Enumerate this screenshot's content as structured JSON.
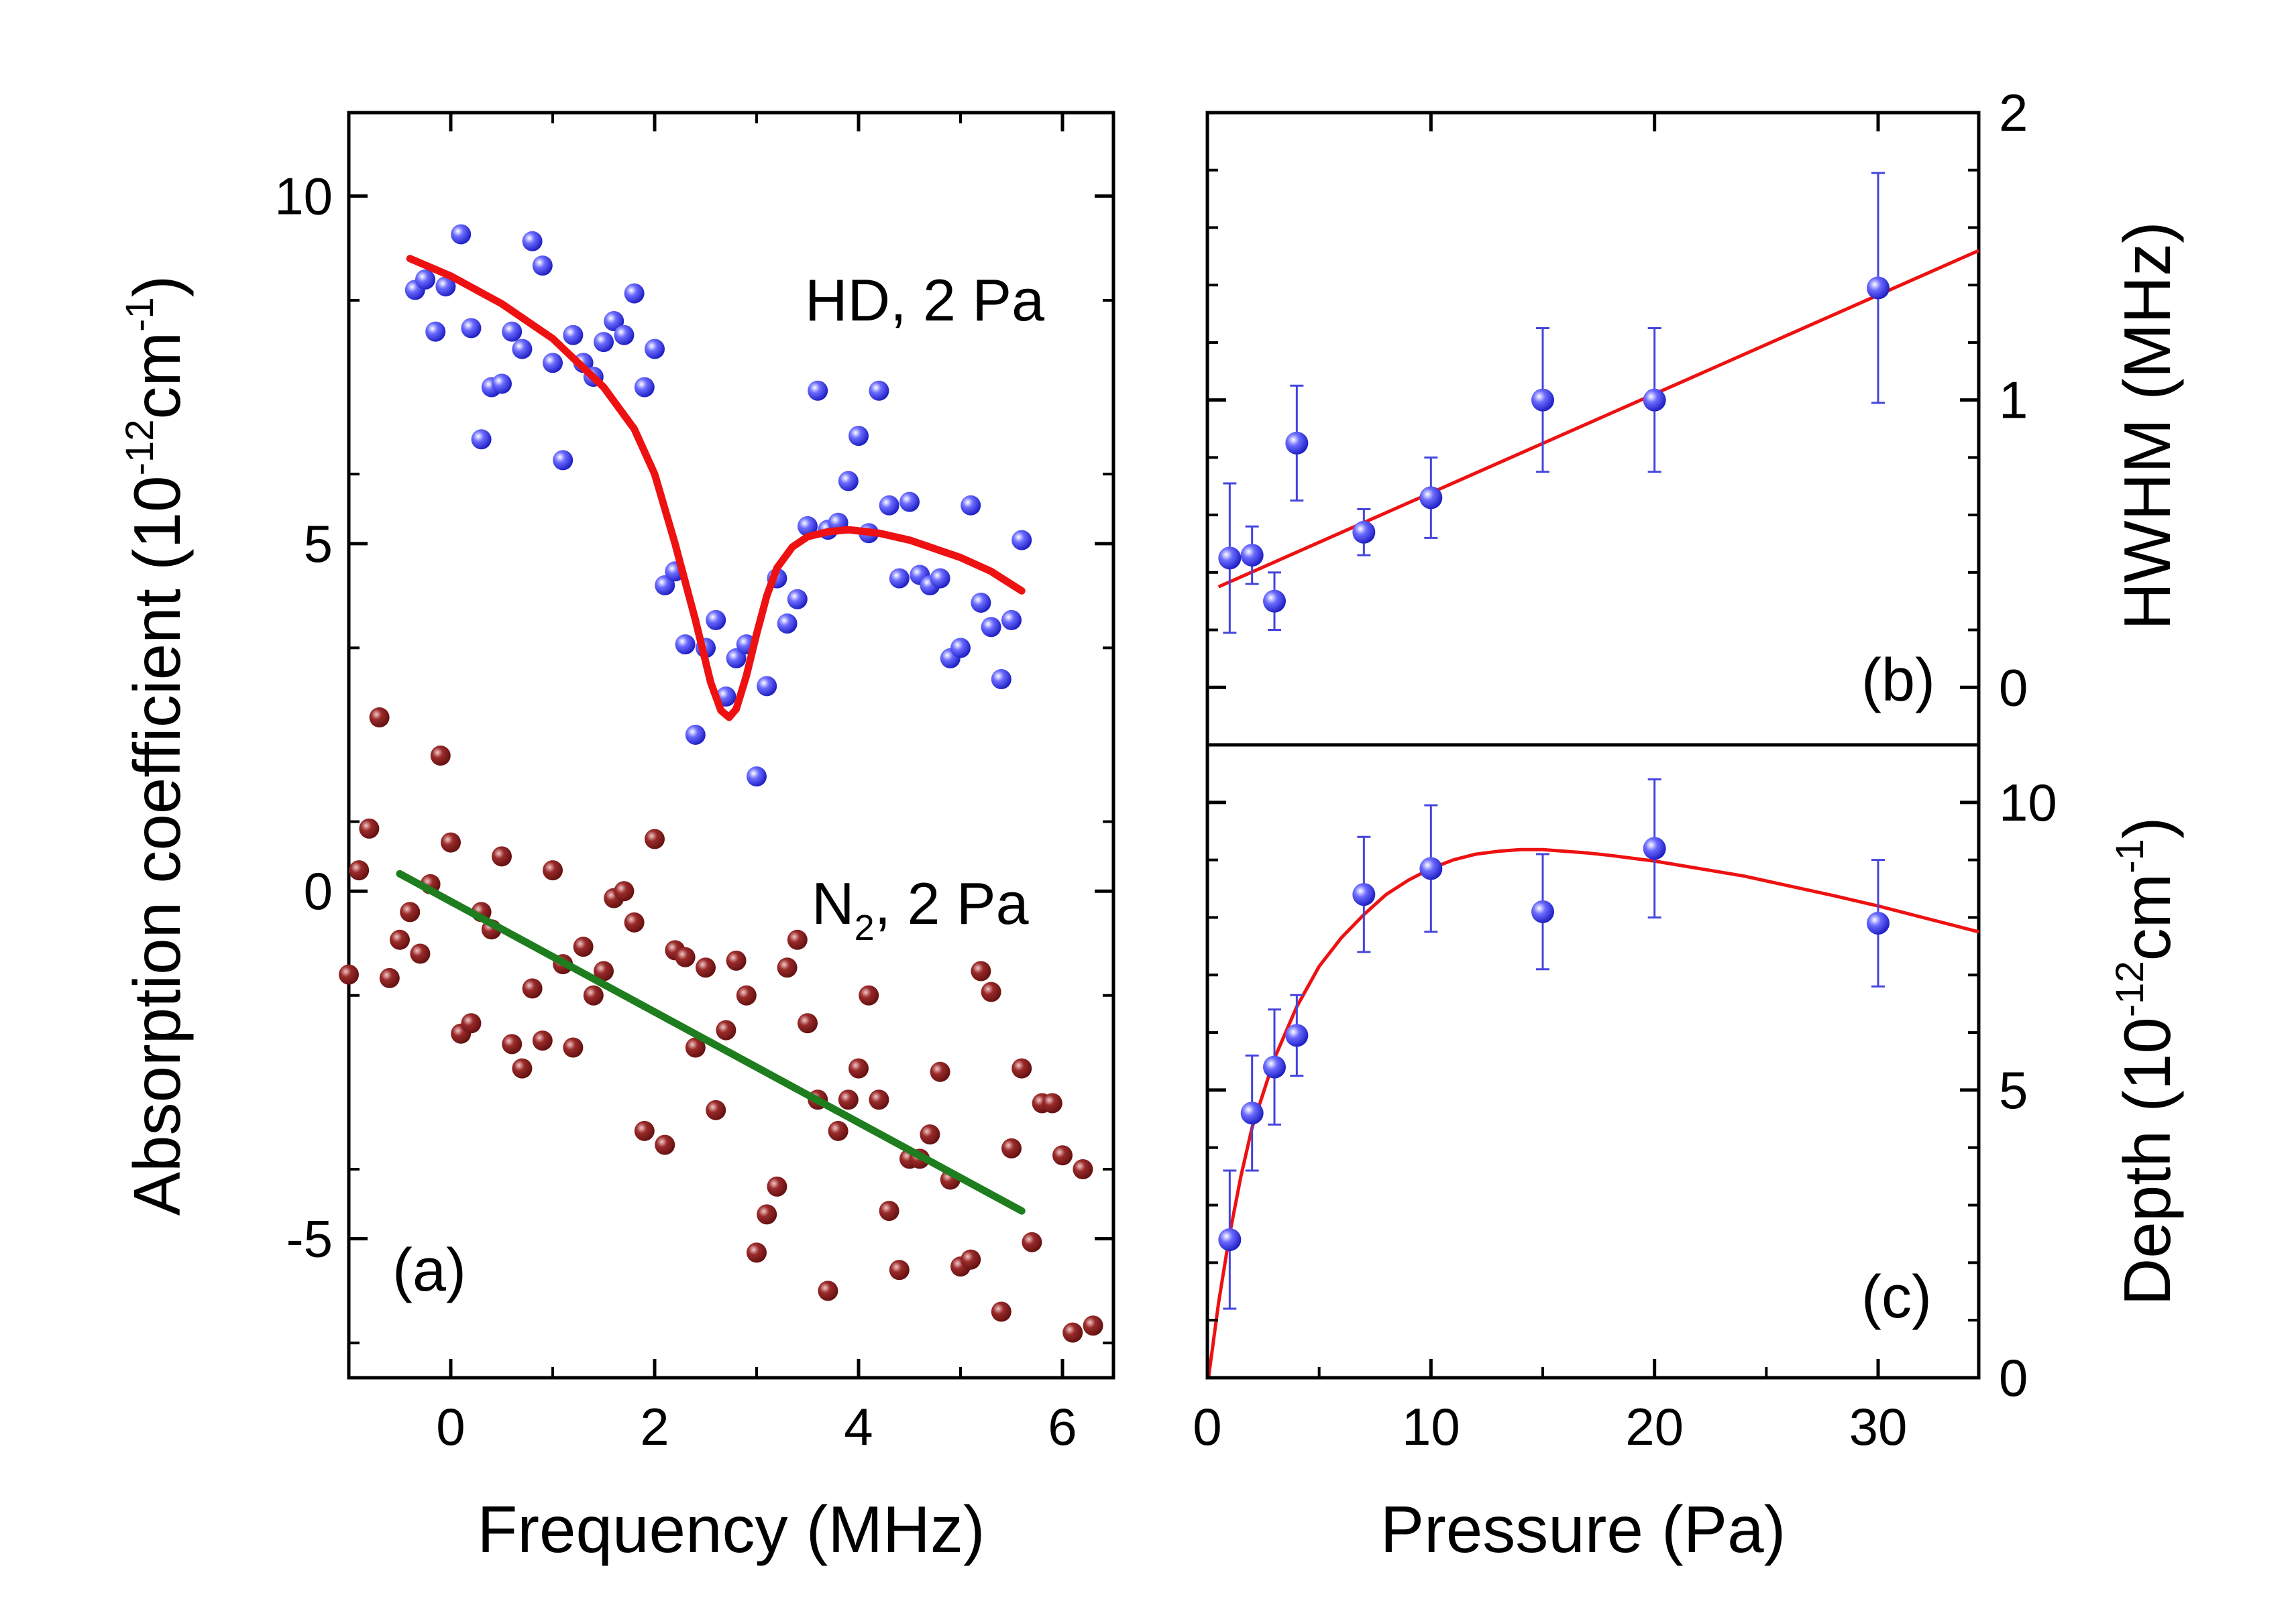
{
  "colors": {
    "hd_points": "#2424e6",
    "hd_fit": "#ee1111",
    "hd_label": "#ff1a1a",
    "n2_points": "#7a1414",
    "n2_fit": "#1e7d1e",
    "n2_label": "#1e7d1e",
    "fit_line": "#ee1111",
    "error_bars": "#4444dd"
  },
  "chart_data": [
    {
      "id": "a",
      "type": "scatter",
      "panel_label": "(a)",
      "xlabel": "Frequency (MHz)",
      "ylabel_prefix": "Absorption coefficient (10",
      "ylabel_exp": "-12",
      "ylabel_mid": "cm",
      "ylabel_exp2": "-1",
      "ylabel_suffix": ")",
      "xlim": [
        -1,
        6.5
      ],
      "ylim": [
        -7,
        11.2
      ],
      "xticks": [
        0,
        2,
        4,
        6
      ],
      "xtick_labels": [
        "0",
        "2",
        "4",
        "6"
      ],
      "yticks": [
        -5,
        0,
        5,
        10
      ],
      "ytick_labels": [
        "-5",
        "0",
        "5",
        "10"
      ],
      "hd_label": "HD, 2 Pa",
      "n2_label_main": "N",
      "n2_label_sub": "2",
      "n2_label_rest": ", 2 Pa",
      "series": [
        {
          "name": "HD, 2 Pa",
          "role": "hd_points",
          "points": [
            [
              -0.35,
              8.65
            ],
            [
              -0.25,
              8.8
            ],
            [
              -0.15,
              8.05
            ],
            [
              -0.05,
              8.7
            ],
            [
              0.1,
              9.45
            ],
            [
              0.2,
              8.1
            ],
            [
              0.3,
              6.5
            ],
            [
              0.4,
              7.25
            ],
            [
              0.5,
              7.3
            ],
            [
              0.6,
              8.05
            ],
            [
              0.7,
              7.8
            ],
            [
              0.8,
              9.35
            ],
            [
              0.9,
              9.0
            ],
            [
              1.0,
              7.6
            ],
            [
              1.1,
              6.2
            ],
            [
              1.2,
              8.0
            ],
            [
              1.3,
              7.6
            ],
            [
              1.4,
              7.4
            ],
            [
              1.5,
              7.9
            ],
            [
              1.6,
              8.2
            ],
            [
              1.7,
              8.0
            ],
            [
              1.8,
              8.6
            ],
            [
              1.9,
              7.25
            ],
            [
              2.0,
              7.8
            ],
            [
              2.1,
              4.4
            ],
            [
              2.2,
              4.6
            ],
            [
              2.3,
              3.55
            ],
            [
              2.4,
              2.25
            ],
            [
              2.5,
              3.5
            ],
            [
              2.6,
              3.9
            ],
            [
              2.7,
              2.8
            ],
            [
              2.8,
              3.35
            ],
            [
              2.9,
              3.55
            ],
            [
              3.0,
              1.65
            ],
            [
              3.1,
              2.95
            ],
            [
              3.2,
              4.5
            ],
            [
              3.3,
              3.85
            ],
            [
              3.4,
              4.2
            ],
            [
              3.5,
              5.25
            ],
            [
              3.6,
              7.2
            ],
            [
              3.7,
              5.2
            ],
            [
              3.8,
              5.3
            ],
            [
              3.9,
              5.9
            ],
            [
              4.0,
              6.55
            ],
            [
              4.1,
              5.15
            ],
            [
              4.2,
              7.2
            ],
            [
              4.3,
              5.55
            ],
            [
              4.4,
              4.5
            ],
            [
              4.5,
              5.6
            ],
            [
              4.6,
              4.55
            ],
            [
              4.7,
              4.4
            ],
            [
              4.8,
              4.5
            ],
            [
              4.9,
              3.35
            ],
            [
              5.0,
              3.5
            ],
            [
              5.1,
              5.55
            ],
            [
              5.2,
              4.15
            ],
            [
              5.3,
              3.8
            ],
            [
              5.4,
              3.05
            ],
            [
              5.5,
              3.9
            ],
            [
              5.6,
              5.05
            ]
          ]
        },
        {
          "name": "HD fit",
          "role": "hd_fit",
          "line": [
            [
              -0.4,
              9.1
            ],
            [
              0.0,
              8.85
            ],
            [
              0.5,
              8.45
            ],
            [
              1.0,
              7.95
            ],
            [
              1.5,
              7.25
            ],
            [
              1.8,
              6.65
            ],
            [
              2.0,
              6.0
            ],
            [
              2.2,
              5.0
            ],
            [
              2.4,
              3.9
            ],
            [
              2.55,
              3.0
            ],
            [
              2.65,
              2.6
            ],
            [
              2.73,
              2.5
            ],
            [
              2.8,
              2.62
            ],
            [
              2.9,
              3.1
            ],
            [
              3.0,
              3.7
            ],
            [
              3.1,
              4.25
            ],
            [
              3.2,
              4.65
            ],
            [
              3.35,
              4.95
            ],
            [
              3.5,
              5.1
            ],
            [
              3.7,
              5.17
            ],
            [
              3.9,
              5.2
            ],
            [
              4.2,
              5.15
            ],
            [
              4.5,
              5.05
            ],
            [
              5.0,
              4.8
            ],
            [
              5.3,
              4.6
            ],
            [
              5.6,
              4.32
            ]
          ]
        },
        {
          "name": "N2, 2 Pa",
          "role": "n2_points",
          "points": [
            [
              -1.0,
              -1.2
            ],
            [
              -0.9,
              0.3
            ],
            [
              -0.8,
              0.9
            ],
            [
              -0.7,
              2.5
            ],
            [
              -0.6,
              -1.25
            ],
            [
              -0.5,
              -0.7
            ],
            [
              -0.4,
              -0.3
            ],
            [
              -0.3,
              -0.9
            ],
            [
              -0.2,
              0.1
            ],
            [
              -0.1,
              1.95
            ],
            [
              0.0,
              0.7
            ],
            [
              0.1,
              -2.05
            ],
            [
              0.2,
              -1.9
            ],
            [
              0.3,
              -0.3
            ],
            [
              0.4,
              -0.55
            ],
            [
              0.5,
              0.5
            ],
            [
              0.6,
              -2.2
            ],
            [
              0.7,
              -2.55
            ],
            [
              0.8,
              -1.4
            ],
            [
              0.9,
              -2.15
            ],
            [
              1.0,
              0.3
            ],
            [
              1.1,
              -1.05
            ],
            [
              1.2,
              -2.25
            ],
            [
              1.3,
              -0.8
            ],
            [
              1.4,
              -1.5
            ],
            [
              1.5,
              -1.15
            ],
            [
              1.6,
              -0.1
            ],
            [
              1.7,
              0.0
            ],
            [
              1.8,
              -0.45
            ],
            [
              1.9,
              -3.45
            ],
            [
              2.0,
              0.75
            ],
            [
              2.1,
              -3.65
            ],
            [
              2.2,
              -0.85
            ],
            [
              2.3,
              -0.95
            ],
            [
              2.4,
              -2.25
            ],
            [
              2.5,
              -1.1
            ],
            [
              2.6,
              -3.15
            ],
            [
              2.7,
              -2.0
            ],
            [
              2.8,
              -1.0
            ],
            [
              2.9,
              -1.5
            ],
            [
              3.0,
              -5.2
            ],
            [
              3.1,
              -4.65
            ],
            [
              3.2,
              -4.25
            ],
            [
              3.3,
              -1.1
            ],
            [
              3.4,
              -0.7
            ],
            [
              3.5,
              -1.9
            ],
            [
              3.6,
              -3.0
            ],
            [
              3.7,
              -5.75
            ],
            [
              3.8,
              -3.45
            ],
            [
              3.9,
              -3.0
            ],
            [
              4.0,
              -2.55
            ],
            [
              4.1,
              -1.5
            ],
            [
              4.2,
              -3.0
            ],
            [
              4.3,
              -4.6
            ],
            [
              4.4,
              -5.45
            ],
            [
              4.5,
              -3.85
            ],
            [
              4.6,
              -3.85
            ],
            [
              4.7,
              -3.5
            ],
            [
              4.8,
              -2.6
            ],
            [
              4.9,
              -4.15
            ],
            [
              5.0,
              -5.4
            ],
            [
              5.1,
              -5.3
            ],
            [
              5.2,
              -1.15
            ],
            [
              5.3,
              -1.45
            ],
            [
              5.4,
              -6.05
            ],
            [
              5.5,
              -3.7
            ],
            [
              5.6,
              -2.55
            ],
            [
              5.7,
              -5.05
            ],
            [
              5.8,
              -3.05
            ],
            [
              5.9,
              -3.05
            ],
            [
              6.0,
              -3.8
            ],
            [
              6.1,
              -6.35
            ],
            [
              6.2,
              -4.0
            ],
            [
              6.3,
              -6.25
            ]
          ]
        },
        {
          "name": "N2 fit",
          "role": "n2_fit",
          "line": [
            [
              -0.5,
              0.25
            ],
            [
              5.6,
              -4.6
            ]
          ]
        }
      ]
    },
    {
      "id": "b",
      "type": "scatter",
      "panel_label": "(b)",
      "ylabel": "HWHM (MHz)",
      "xlim": [
        0,
        34.5
      ],
      "ylim": [
        -0.2,
        2.0
      ],
      "yticks": [
        0,
        1,
        2
      ],
      "ytick_labels": [
        "0",
        "1",
        "2"
      ],
      "points": [
        {
          "x": 1,
          "y": 0.45,
          "err": 0.26
        },
        {
          "x": 2,
          "y": 0.46,
          "err": 0.1
        },
        {
          "x": 3,
          "y": 0.3,
          "err": 0.1
        },
        {
          "x": 4,
          "y": 0.85,
          "err": 0.2
        },
        {
          "x": 7,
          "y": 0.54,
          "err": 0.08
        },
        {
          "x": 10,
          "y": 0.66,
          "err": 0.14
        },
        {
          "x": 15,
          "y": 1.0,
          "err": 0.25
        },
        {
          "x": 20,
          "y": 1.0,
          "err": 0.25
        },
        {
          "x": 30,
          "y": 1.39,
          "err": 0.4
        }
      ],
      "fit_line": [
        [
          0.5,
          0.35
        ],
        [
          34.5,
          1.52
        ]
      ]
    },
    {
      "id": "c",
      "type": "scatter",
      "panel_label": "(c)",
      "xlabel": "Pressure (Pa)",
      "ylabel_prefix": "Depth (10",
      "ylabel_exp": "-12",
      "ylabel_mid": "cm",
      "ylabel_exp2": "-1",
      "ylabel_suffix": ")",
      "xlim": [
        0,
        34.5
      ],
      "ylim": [
        0,
        11
      ],
      "xticks": [
        0,
        10,
        20,
        30
      ],
      "xtick_labels": [
        "0",
        "10",
        "20",
        "30"
      ],
      "yticks": [
        0,
        5,
        10
      ],
      "ytick_labels": [
        "0",
        "5",
        "10"
      ],
      "points": [
        {
          "x": 1,
          "y": 2.4,
          "err": 1.2
        },
        {
          "x": 2,
          "y": 4.6,
          "err": 1.0
        },
        {
          "x": 3,
          "y": 5.4,
          "err": 1.0
        },
        {
          "x": 4,
          "y": 5.95,
          "err": 0.7
        },
        {
          "x": 7,
          "y": 8.4,
          "err": 1.0
        },
        {
          "x": 10,
          "y": 8.85,
          "err": 1.1
        },
        {
          "x": 15,
          "y": 8.1,
          "err": 1.0
        },
        {
          "x": 20,
          "y": 9.2,
          "err": 1.2
        },
        {
          "x": 30,
          "y": 7.9,
          "err": 1.1
        }
      ],
      "fit_curve": [
        [
          0.05,
          0.0
        ],
        [
          0.5,
          1.3
        ],
        [
          1,
          2.5
        ],
        [
          1.5,
          3.5
        ],
        [
          2,
          4.35
        ],
        [
          3,
          5.55
        ],
        [
          4,
          6.45
        ],
        [
          5,
          7.15
        ],
        [
          6,
          7.65
        ],
        [
          7,
          8.05
        ],
        [
          8,
          8.4
        ],
        [
          9,
          8.65
        ],
        [
          10,
          8.85
        ],
        [
          11,
          9.0
        ],
        [
          12,
          9.1
        ],
        [
          13,
          9.15
        ],
        [
          14,
          9.18
        ],
        [
          15,
          9.18
        ],
        [
          16,
          9.15
        ],
        [
          17,
          9.12
        ],
        [
          18,
          9.08
        ],
        [
          20,
          8.98
        ],
        [
          22,
          8.85
        ],
        [
          24,
          8.72
        ],
        [
          26,
          8.55
        ],
        [
          28,
          8.38
        ],
        [
          30,
          8.2
        ],
        [
          32,
          8.0
        ],
        [
          34.5,
          7.75
        ]
      ]
    }
  ]
}
